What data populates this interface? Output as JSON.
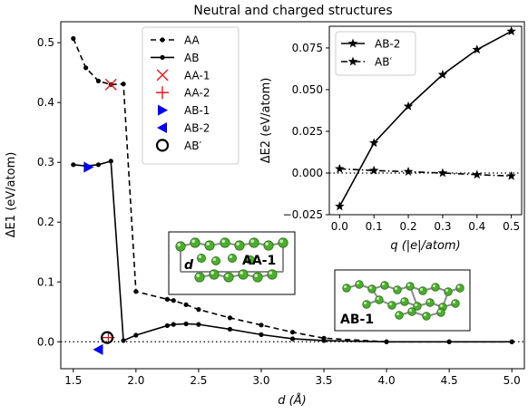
{
  "chart_data": [
    {
      "type": "line",
      "title": "Neutral and charged structures",
      "xlabel": "d (Å)",
      "ylabel": "ΔE1 (eV/atom)",
      "xlim": [
        1.4,
        5.1
      ],
      "ylim": [
        -0.045,
        0.535
      ],
      "xticks": [
        "1.5",
        "2.0",
        "2.5",
        "3.0",
        "3.5",
        "4.0",
        "4.5",
        "5.0"
      ],
      "yticks": [
        "0.0",
        "0.1",
        "0.2",
        "0.3",
        "0.4",
        "0.5"
      ],
      "xtick_values": [
        1.5,
        2.0,
        2.5,
        3.0,
        3.5,
        4.0,
        4.5,
        5.0
      ],
      "ytick_values": [
        0.0,
        0.1,
        0.2,
        0.3,
        0.4,
        0.5
      ],
      "reference_line": {
        "y": 0.0,
        "style": "dotted",
        "color": "#000000"
      },
      "legend_position": "top-center",
      "series": [
        {
          "name": "AA",
          "style": "dashed",
          "marker": "dot",
          "color": "#000000",
          "x": [
            1.5,
            1.6,
            1.7,
            1.8,
            1.9,
            2.0,
            2.25,
            2.3,
            2.4,
            2.5,
            2.75,
            3.0,
            3.25,
            3.5,
            4.0,
            4.5,
            5.0
          ],
          "y": [
            0.507,
            0.458,
            0.436,
            0.43,
            0.431,
            0.084,
            0.071,
            0.069,
            0.062,
            0.054,
            0.04,
            0.028,
            0.016,
            0.006,
            0.0,
            0.0,
            0.0
          ]
        },
        {
          "name": "AB",
          "style": "solid",
          "marker": "dot",
          "color": "#000000",
          "x": [
            1.5,
            1.6,
            1.7,
            1.8,
            1.9,
            2.0,
            2.25,
            2.3,
            2.4,
            2.5,
            2.75,
            3.0,
            3.25,
            3.5,
            4.0,
            4.5,
            5.0
          ],
          "y": [
            0.296,
            0.294,
            0.296,
            0.302,
            0.002,
            0.011,
            0.027,
            0.029,
            0.03,
            0.029,
            0.021,
            0.012,
            0.005,
            0.002,
            0.0,
            0.0,
            0.0
          ]
        }
      ],
      "points": [
        {
          "name": "AA-1",
          "marker": "x",
          "color": "#ff0000",
          "x": 1.8,
          "y": 0.43
        },
        {
          "name": "AA-2",
          "marker": "+",
          "color": "#ff0000",
          "x": 1.78,
          "y": 0.007
        },
        {
          "name": "AB-1",
          "marker": "triangle-right",
          "color": "#0000ff",
          "x": 1.62,
          "y": 0.292
        },
        {
          "name": "AB-2",
          "marker": "triangle-left",
          "color": "#0000ff",
          "x": 1.7,
          "y": -0.013
        },
        {
          "name": "AB′",
          "marker": "circle-open",
          "color": "#000000",
          "x": 1.77,
          "y": 0.007
        }
      ],
      "annotations": [
        {
          "text": "d",
          "style": "bold-italic"
        },
        {
          "text": "AA-1",
          "style": "bold"
        },
        {
          "text": "AB-1",
          "style": "bold"
        }
      ]
    },
    {
      "type": "line",
      "title": "",
      "xlabel": "q (|e|/atom)",
      "ylabel": "ΔE2 (eV/atom)",
      "xlim": [
        -0.03,
        0.53
      ],
      "ylim": [
        -0.025,
        0.088
      ],
      "xticks": [
        "0.0",
        "0.1",
        "0.2",
        "0.3",
        "0.4",
        "0.5"
      ],
      "yticks": [
        "−0.025",
        "0.000",
        "0.025",
        "0.050",
        "0.075"
      ],
      "xtick_values": [
        0.0,
        0.1,
        0.2,
        0.3,
        0.4,
        0.5
      ],
      "ytick_values": [
        -0.025,
        0.0,
        0.025,
        0.05,
        0.075
      ],
      "reference_line": {
        "y": 0.0,
        "style": "dotted",
        "color": "#000000"
      },
      "legend_position": "top-left",
      "series": [
        {
          "name": "AB-2",
          "style": "solid",
          "marker": "star",
          "color": "#000000",
          "x": [
            0.0,
            0.1,
            0.2,
            0.3,
            0.4,
            0.5
          ],
          "y": [
            -0.02,
            0.018,
            0.04,
            0.059,
            0.074,
            0.085
          ]
        },
        {
          "name": "AB′",
          "style": "dashdot",
          "marker": "star",
          "color": "#000000",
          "x": [
            0.0,
            0.1,
            0.2,
            0.3,
            0.4,
            0.5
          ],
          "y": [
            0.0025,
            0.0015,
            0.0008,
            0.0,
            -0.001,
            -0.0018
          ]
        }
      ]
    }
  ]
}
